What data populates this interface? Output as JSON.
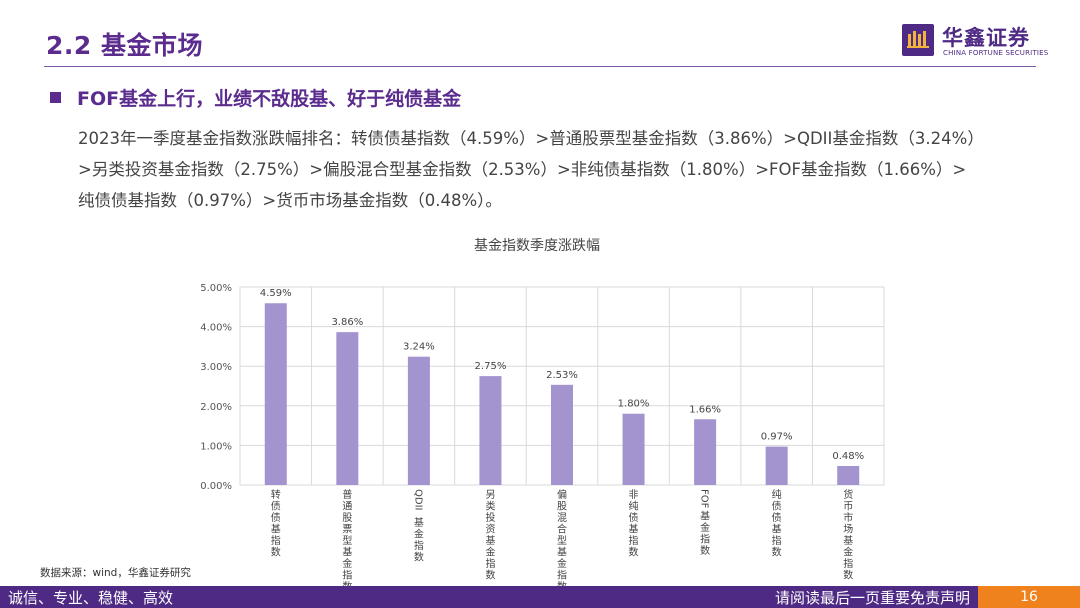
{
  "header": {
    "page_title": "2.2 基金市场",
    "logo_cn": "华鑫证券",
    "logo_en": "CHINA FORTUNE SECURITIES"
  },
  "section": {
    "bullet_title": "FOF基金上行，业绩不敌股基、好于纯债基金",
    "body_lines": [
      "2023年一季度基金指数涨跌幅排名：转债债基指数（4.59%）>普通股票型基金指数（3.86%）>QDII基金指数（3.24%）",
      ">另类投资基金指数（2.75%）>偏股混合型基金指数（2.53%）>非纯债基指数（1.80%）>FOF基金指数（1.66%）>",
      "纯债债基指数（0.97%）>货币市场基金指数（0.48%）。"
    ]
  },
  "chart_data": {
    "type": "bar",
    "title": "基金指数季度涨跌幅",
    "xlabel": "",
    "ylabel": "",
    "categories": [
      "转债债基指数",
      "普通股票型基金指数",
      "QDII基金指数",
      "另类投资基金指数",
      "偏股混合型基金指数",
      "非纯债基指数",
      "FOF基金指数",
      "纯债债基指数",
      "货币市场基金指数"
    ],
    "values": [
      4.59,
      3.86,
      3.24,
      2.75,
      2.53,
      1.8,
      1.66,
      0.97,
      0.48
    ],
    "data_labels": [
      "4.59%",
      "3.86%",
      "3.24%",
      "2.75%",
      "2.53%",
      "1.80%",
      "1.66%",
      "0.97%",
      "0.48%"
    ],
    "y_ticks": [
      "0.00%",
      "1.00%",
      "2.00%",
      "3.00%",
      "4.00%",
      "5.00%"
    ],
    "y_tick_values": [
      0,
      1,
      2,
      3,
      4,
      5
    ],
    "ylim": [
      0,
      5
    ],
    "grid": true,
    "bar_color": "#a393cf"
  },
  "source": "数据来源：wind，华鑫证券研究",
  "footer": {
    "left": "诚信、专业、稳健、高效",
    "right": "请阅读最后一页重要免责声明",
    "page_number": "16"
  },
  "colors": {
    "brand_purple": "#4e2a84",
    "accent_orange": "#f0821e"
  }
}
